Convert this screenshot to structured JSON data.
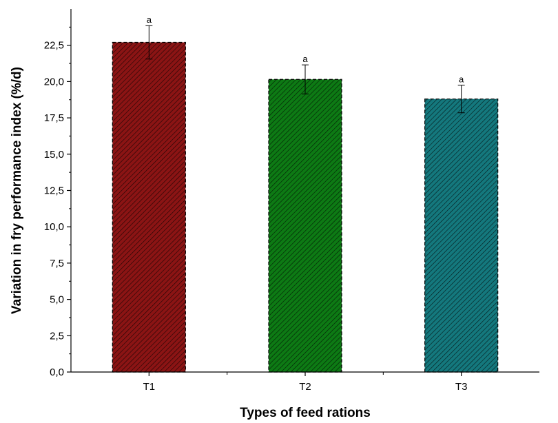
{
  "chart_data": {
    "type": "bar",
    "xlabel": "Types of feed rations",
    "ylabel": "Variation in fry performance index (%/d)",
    "categories": [
      "T1",
      "T2",
      "T3"
    ],
    "values": [
      22.7,
      20.15,
      18.8
    ],
    "errors": [
      1.15,
      1.0,
      0.95
    ],
    "significance_labels": [
      "a",
      "a",
      "a"
    ],
    "bar_colors": [
      "#8b1414",
      "#0d7a14",
      "#14787d"
    ],
    "ylim": [
      0,
      25
    ],
    "yticks": [
      "0,0",
      "2,5",
      "5,0",
      "7,5",
      "10,0",
      "12,5",
      "15,0",
      "17,5",
      "20,0",
      "22,5"
    ],
    "ytick_values": [
      0,
      2.5,
      5,
      7.5,
      10,
      12.5,
      15,
      17.5,
      20,
      22.5
    ],
    "grid": false,
    "hatch": "diagonal"
  }
}
